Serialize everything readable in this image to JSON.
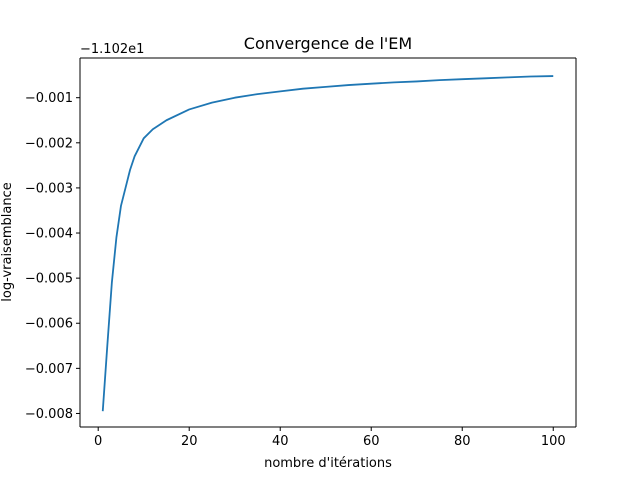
{
  "chart_data": {
    "type": "line",
    "title": "Convergence de l'EM",
    "xlabel": "nombre d'itérations",
    "ylabel": "log-vraisemblance",
    "offset_text": "−1.102e1",
    "xlim": [
      -4,
      105
    ],
    "ylim": [
      -0.0083,
      -0.00012
    ],
    "x_ticks": [
      0,
      20,
      40,
      60,
      80,
      100
    ],
    "x_tick_labels": [
      "0",
      "20",
      "40",
      "60",
      "80",
      "100"
    ],
    "y_ticks": [
      -0.008,
      -0.007,
      -0.006,
      -0.005,
      -0.004,
      -0.003,
      -0.002,
      -0.001
    ],
    "y_tick_labels": [
      "−0.008",
      "−0.007",
      "−0.006",
      "−0.005",
      "−0.004",
      "−0.003",
      "−0.002",
      "−0.001"
    ],
    "grid": false,
    "line_color": "#1f77b4",
    "series": [
      {
        "name": "",
        "x": [
          1,
          2,
          3,
          4,
          5,
          6,
          7,
          8,
          9,
          10,
          12,
          15,
          20,
          25,
          30,
          35,
          40,
          45,
          50,
          55,
          60,
          65,
          70,
          75,
          80,
          85,
          90,
          95,
          100
        ],
        "y": [
          -0.00795,
          -0.0065,
          -0.0051,
          -0.0041,
          -0.0034,
          -0.003,
          -0.0026,
          -0.0023,
          -0.0021,
          -0.0019,
          -0.0017,
          -0.0015,
          -0.00126,
          -0.00111,
          -0.001,
          -0.00092,
          -0.00086,
          -0.0008,
          -0.00076,
          -0.00072,
          -0.00069,
          -0.00066,
          -0.00064,
          -0.00061,
          -0.00059,
          -0.00057,
          -0.00055,
          -0.00053,
          -0.00052
        ]
      }
    ]
  }
}
